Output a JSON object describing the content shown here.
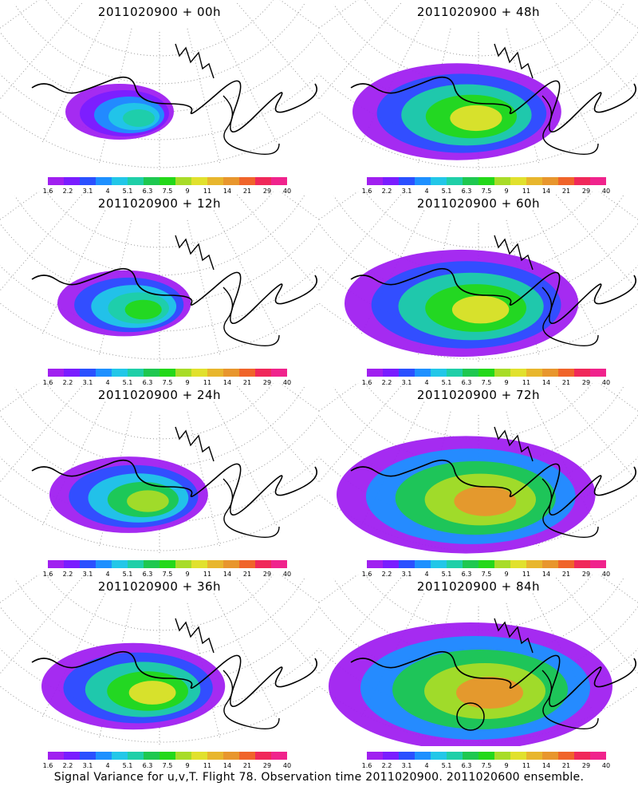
{
  "footer": "Signal Variance for u,v,T. Flight 78. Observation time 2011020900. 2011020600 ensemble.",
  "colorbar": {
    "colors": [
      "#a020f0",
      "#7a1dff",
      "#2b50ff",
      "#1e90ff",
      "#22c7e8",
      "#1fcfa8",
      "#1ec850",
      "#24d81a",
      "#a8dc28",
      "#e1e12d",
      "#e8b62d",
      "#e8962d",
      "#f0642a",
      "#f0285a",
      "#f0238c"
    ],
    "ticks": [
      "1.6",
      "2.2",
      "3.1",
      "4",
      "5.1",
      "6.3",
      "7.5",
      "9",
      "11",
      "14",
      "21",
      "29",
      "40"
    ]
  },
  "chart_data": [
    {
      "type": "heatmap",
      "title": "2011020900 + 00h",
      "field": "signal variance",
      "colorbar_ticks": [
        "1.6",
        "2.2",
        "3.1",
        "4",
        "5.1",
        "6.3",
        "7.5",
        "9",
        "11",
        "14",
        "21",
        "29",
        "40"
      ],
      "max_level": "5.1"
    },
    {
      "type": "heatmap",
      "title": "2011020900 + 48h",
      "field": "signal variance",
      "colorbar_ticks": [
        "1.6",
        "2.2",
        "3.1",
        "4",
        "5.1",
        "6.3",
        "7.5",
        "9",
        "11",
        "14",
        "21",
        "29",
        "40"
      ],
      "max_level": "11"
    },
    {
      "type": "heatmap",
      "title": "2011020900 + 12h",
      "field": "signal variance",
      "colorbar_ticks": [
        "1.6",
        "2.2",
        "3.1",
        "4",
        "5.1",
        "6.3",
        "7.5",
        "9",
        "11",
        "14",
        "21",
        "29",
        "40"
      ],
      "max_level": "7.5"
    },
    {
      "type": "heatmap",
      "title": "2011020900 + 60h",
      "field": "signal variance",
      "colorbar_ticks": [
        "1.6",
        "2.2",
        "3.1",
        "4",
        "5.1",
        "6.3",
        "7.5",
        "9",
        "11",
        "14",
        "21",
        "29",
        "40"
      ],
      "max_level": "11"
    },
    {
      "type": "heatmap",
      "title": "2011020900 + 24h",
      "field": "signal variance",
      "colorbar_ticks": [
        "1.6",
        "2.2",
        "3.1",
        "4",
        "5.1",
        "6.3",
        "7.5",
        "9",
        "11",
        "14",
        "21",
        "29",
        "40"
      ],
      "max_level": "9"
    },
    {
      "type": "heatmap",
      "title": "2011020900 + 72h",
      "field": "signal variance",
      "colorbar_ticks": [
        "1.6",
        "2.2",
        "3.1",
        "4",
        "5.1",
        "6.3",
        "7.5",
        "9",
        "11",
        "14",
        "21",
        "29",
        "40"
      ],
      "max_level": "14"
    },
    {
      "type": "heatmap",
      "title": "2011020900 + 36h",
      "field": "signal variance",
      "colorbar_ticks": [
        "1.6",
        "2.2",
        "3.1",
        "4",
        "5.1",
        "6.3",
        "7.5",
        "9",
        "11",
        "14",
        "21",
        "29",
        "40"
      ],
      "max_level": "11"
    },
    {
      "type": "heatmap",
      "title": "2011020900 + 84h",
      "field": "signal variance",
      "colorbar_ticks": [
        "1.6",
        "2.2",
        "3.1",
        "4",
        "5.1",
        "6.3",
        "7.5",
        "9",
        "11",
        "14",
        "21",
        "29",
        "40"
      ],
      "max_level": "14"
    }
  ]
}
